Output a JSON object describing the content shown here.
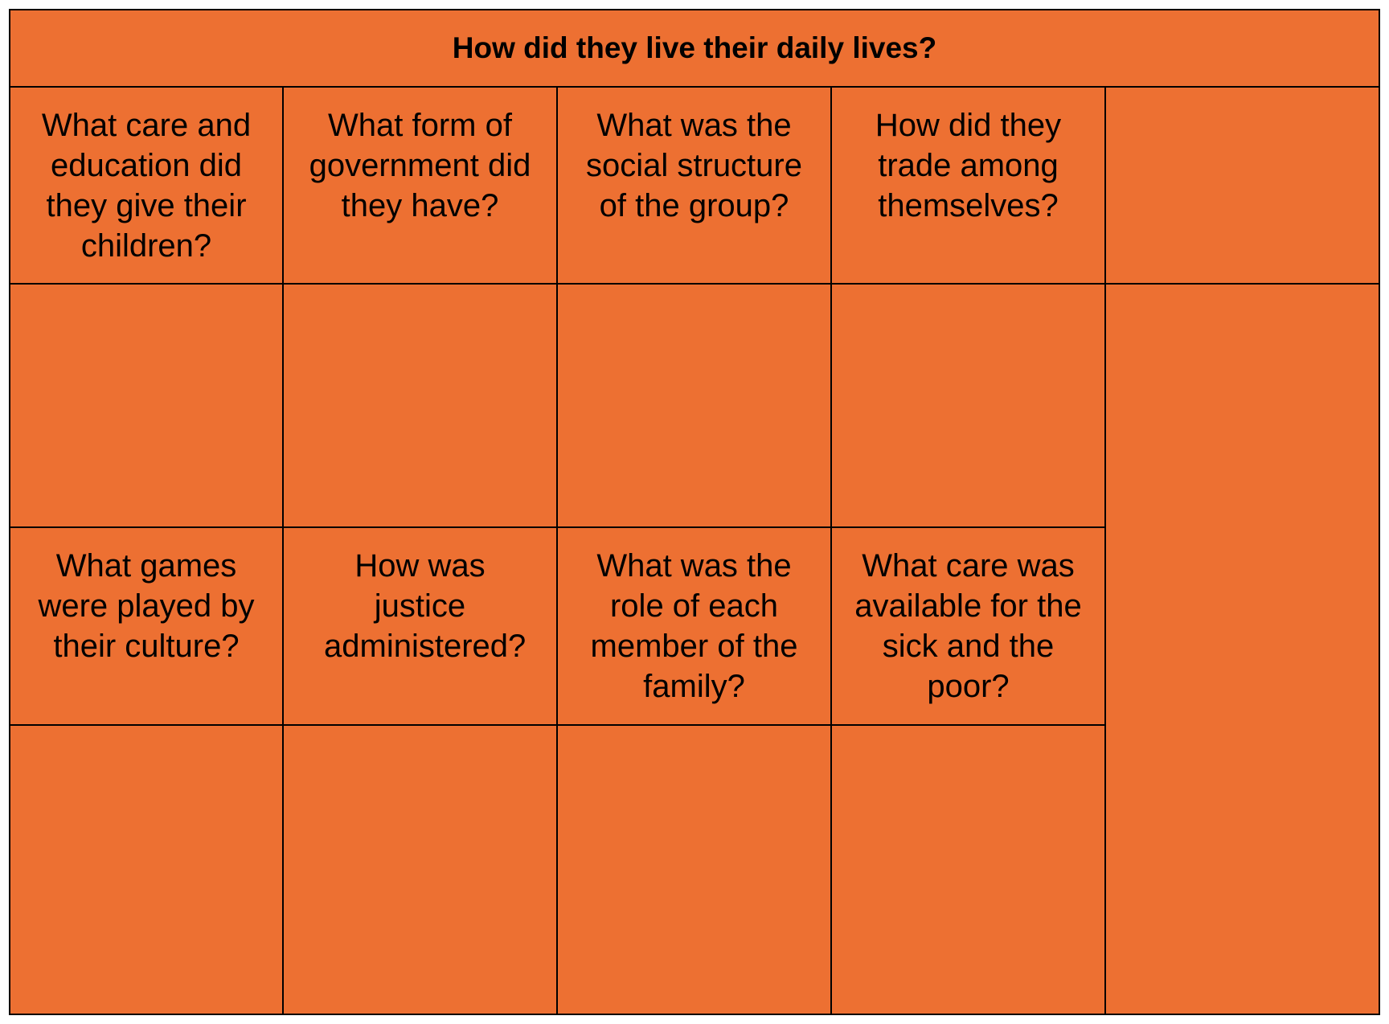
{
  "table": {
    "title": "How did they live their daily lives?",
    "background_color": "#ed7032",
    "row1_questions": [
      "What care and education did they give their children?",
      "What form of government did they have?",
      "What was the social structure of the group?",
      "How did they trade among themselves?"
    ],
    "row3_questions": [
      "What games were played by their culture?",
      "How was justice administered?",
      "What was the role of each member of the family?",
      "What care was available for the sick and the poor?"
    ]
  }
}
